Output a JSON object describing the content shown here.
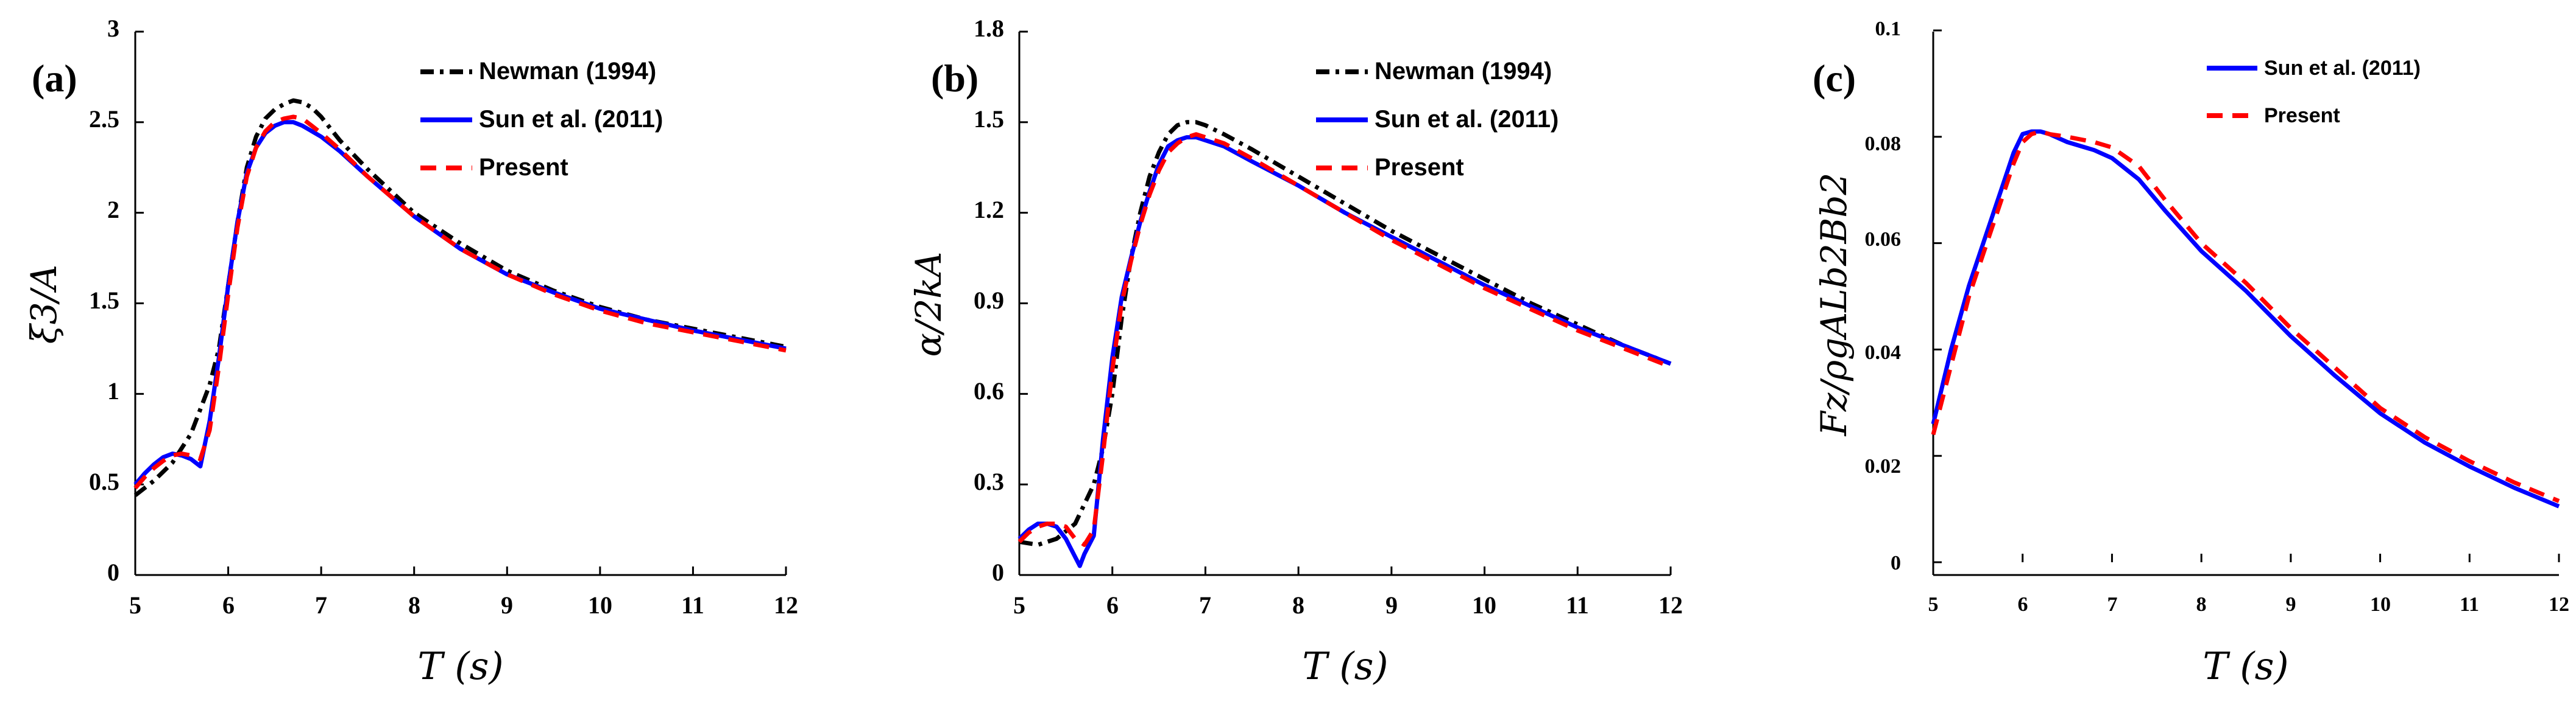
{
  "chart_data": [
    {
      "type": "line",
      "panel_label": "(a)",
      "xlabel": "T (s)",
      "ylabel": "ξ3/A",
      "xlim": [
        5,
        12
      ],
      "ylim": [
        0,
        3
      ],
      "xticks": [
        5,
        6,
        7,
        8,
        9,
        10,
        11,
        12
      ],
      "yticks": [
        0,
        0.5,
        1,
        1.5,
        2,
        2.5,
        3
      ],
      "ytick_labels": [
        "0",
        "0.5",
        "1",
        "1.5",
        "2",
        "2.5",
        "3"
      ],
      "legend": [
        "Newman (1994)",
        "Sun et al. (2011)",
        "Present"
      ],
      "series": [
        {
          "name": "Newman (1994)",
          "color": "#000000",
          "style": "dashdot",
          "x": [
            5.0,
            5.2,
            5.4,
            5.6,
            5.8,
            5.9,
            6.0,
            6.1,
            6.2,
            6.3,
            6.4,
            6.5,
            6.6,
            6.7,
            6.8,
            6.9,
            7.0,
            7.2,
            7.5,
            8.0,
            8.5,
            9.0,
            9.5,
            10.0,
            10.5,
            11.0,
            11.5,
            12.0
          ],
          "y": [
            0.44,
            0.52,
            0.62,
            0.78,
            1.05,
            1.25,
            1.6,
            1.95,
            2.25,
            2.42,
            2.52,
            2.57,
            2.6,
            2.62,
            2.61,
            2.58,
            2.53,
            2.4,
            2.24,
            2.0,
            1.83,
            1.68,
            1.57,
            1.48,
            1.41,
            1.36,
            1.31,
            1.26
          ]
        },
        {
          "name": "Sun et al. (2011)",
          "color": "#0000ff",
          "style": "solid",
          "x": [
            5.0,
            5.1,
            5.2,
            5.3,
            5.4,
            5.5,
            5.6,
            5.7,
            5.8,
            5.9,
            6.0,
            6.1,
            6.2,
            6.3,
            6.4,
            6.5,
            6.6,
            6.7,
            6.8,
            6.9,
            7.0,
            7.2,
            7.5,
            8.0,
            8.5,
            9.0,
            9.5,
            10.0,
            10.5,
            11.0,
            11.5,
            12.0
          ],
          "y": [
            0.5,
            0.56,
            0.61,
            0.65,
            0.67,
            0.66,
            0.64,
            0.6,
            0.85,
            1.2,
            1.6,
            1.95,
            2.22,
            2.36,
            2.44,
            2.48,
            2.5,
            2.5,
            2.48,
            2.45,
            2.42,
            2.34,
            2.2,
            1.98,
            1.8,
            1.66,
            1.56,
            1.47,
            1.41,
            1.35,
            1.3,
            1.25
          ]
        },
        {
          "name": "Present",
          "color": "#ff0000",
          "style": "dashed",
          "x": [
            5.0,
            5.1,
            5.2,
            5.3,
            5.4,
            5.5,
            5.6,
            5.7,
            5.8,
            5.9,
            6.0,
            6.1,
            6.2,
            6.3,
            6.4,
            6.5,
            6.6,
            6.7,
            6.8,
            6.9,
            7.0,
            7.2,
            7.5,
            8.0,
            8.5,
            9.0,
            9.5,
            10.0,
            10.5,
            11.0,
            11.5,
            12.0
          ],
          "y": [
            0.48,
            0.54,
            0.59,
            0.63,
            0.66,
            0.67,
            0.66,
            0.64,
            0.8,
            1.15,
            1.55,
            1.92,
            2.2,
            2.36,
            2.45,
            2.5,
            2.52,
            2.53,
            2.52,
            2.48,
            2.44,
            2.35,
            2.2,
            1.98,
            1.8,
            1.66,
            1.55,
            1.46,
            1.39,
            1.34,
            1.29,
            1.24
          ]
        }
      ]
    },
    {
      "type": "line",
      "panel_label": "(b)",
      "xlabel": "T (s)",
      "ylabel": "α/2kA",
      "xlim": [
        5,
        12
      ],
      "ylim": [
        0,
        1.8
      ],
      "xticks": [
        5,
        6,
        7,
        8,
        9,
        10,
        11,
        12
      ],
      "yticks": [
        0,
        0.3,
        0.6,
        0.9,
        1.2,
        1.5,
        1.8
      ],
      "ytick_labels": [
        "0",
        "0.3",
        "0.6",
        "0.9",
        "1.2",
        "1.5",
        "1.8"
      ],
      "legend": [
        "Newman (1994)",
        "Sun et al. (2011)",
        "Present"
      ],
      "series": [
        {
          "name": "Newman (1994)",
          "color": "#000000",
          "style": "dashdot",
          "x": [
            5.0,
            5.2,
            5.4,
            5.6,
            5.8,
            5.9,
            6.0,
            6.1,
            6.2,
            6.3,
            6.4,
            6.5,
            6.6,
            6.7,
            6.8,
            6.9,
            7.0,
            7.2,
            7.5,
            8.0,
            8.5,
            9.0,
            9.5,
            10.0,
            10.5,
            11.0,
            11.5,
            12.0
          ],
          "y": [
            0.11,
            0.1,
            0.12,
            0.17,
            0.3,
            0.42,
            0.6,
            0.85,
            1.05,
            1.2,
            1.32,
            1.4,
            1.46,
            1.49,
            1.5,
            1.5,
            1.49,
            1.46,
            1.41,
            1.32,
            1.23,
            1.14,
            1.06,
            0.98,
            0.9,
            0.83,
            0.76,
            0.7
          ]
        },
        {
          "name": "Sun et al. (2011)",
          "color": "#0000ff",
          "style": "solid",
          "x": [
            5.0,
            5.1,
            5.2,
            5.3,
            5.4,
            5.5,
            5.6,
            5.65,
            5.7,
            5.8,
            5.9,
            6.0,
            6.1,
            6.2,
            6.3,
            6.4,
            6.5,
            6.6,
            6.7,
            6.8,
            6.9,
            7.0,
            7.2,
            7.5,
            8.0,
            8.5,
            9.0,
            9.5,
            10.0,
            10.5,
            11.0,
            11.5,
            12.0
          ],
          "y": [
            0.12,
            0.15,
            0.17,
            0.17,
            0.16,
            0.12,
            0.06,
            0.03,
            0.07,
            0.13,
            0.45,
            0.72,
            0.92,
            1.05,
            1.17,
            1.27,
            1.36,
            1.42,
            1.44,
            1.45,
            1.45,
            1.44,
            1.42,
            1.37,
            1.29,
            1.2,
            1.12,
            1.04,
            0.96,
            0.89,
            0.82,
            0.76,
            0.7
          ]
        },
        {
          "name": "Present",
          "color": "#ff0000",
          "style": "dashed",
          "x": [
            5.0,
            5.1,
            5.2,
            5.3,
            5.4,
            5.5,
            5.6,
            5.7,
            5.8,
            5.9,
            6.0,
            6.1,
            6.2,
            6.3,
            6.4,
            6.5,
            6.6,
            6.7,
            6.8,
            6.9,
            7.0,
            7.2,
            7.5,
            8.0,
            8.5,
            9.0,
            9.5,
            10.0,
            10.5,
            11.0,
            11.5,
            12.0
          ],
          "y": [
            0.11,
            0.14,
            0.16,
            0.17,
            0.17,
            0.16,
            0.12,
            0.1,
            0.15,
            0.4,
            0.68,
            0.9,
            1.04,
            1.16,
            1.26,
            1.34,
            1.4,
            1.43,
            1.45,
            1.46,
            1.45,
            1.43,
            1.38,
            1.29,
            1.2,
            1.11,
            1.03,
            0.95,
            0.88,
            0.81,
            0.75,
            0.69
          ]
        }
      ]
    },
    {
      "type": "line",
      "panel_label": "(c)",
      "xlabel": "T (s)",
      "ylabel": "Fz/ρgALb2Bb2",
      "xlim": [
        5,
        12
      ],
      "ylim": [
        0,
        0.1
      ],
      "xticks": [
        5,
        6,
        7,
        8,
        9,
        10,
        11,
        12
      ],
      "yticks": [
        0,
        0.02,
        0.04,
        0.06,
        0.08,
        0.1
      ],
      "ytick_labels": [
        "0",
        "0.02",
        "0.04",
        "0.06",
        "0.08",
        "0.1"
      ],
      "legend": [
        "Sun et al. (2011)",
        "Present"
      ],
      "series": [
        {
          "name": "Sun et al. (2011)",
          "color": "#0000ff",
          "style": "solid",
          "x": [
            5.0,
            5.2,
            5.4,
            5.6,
            5.8,
            5.9,
            6.0,
            6.1,
            6.2,
            6.3,
            6.5,
            6.8,
            7.0,
            7.3,
            7.6,
            8.0,
            8.5,
            9.0,
            9.5,
            10.0,
            10.5,
            11.0,
            11.5,
            12.0
          ],
          "y": [
            0.026,
            0.04,
            0.052,
            0.062,
            0.072,
            0.077,
            0.0805,
            0.081,
            0.081,
            0.0805,
            0.079,
            0.0775,
            0.076,
            0.072,
            0.066,
            0.0585,
            0.051,
            0.0425,
            0.035,
            0.028,
            0.0225,
            0.018,
            0.014,
            0.0105
          ]
        },
        {
          "name": "Present",
          "color": "#ff0000",
          "style": "dashed",
          "x": [
            5.0,
            5.2,
            5.4,
            5.6,
            5.8,
            5.9,
            6.0,
            6.1,
            6.2,
            6.3,
            6.5,
            6.8,
            7.0,
            7.3,
            7.6,
            8.0,
            8.5,
            9.0,
            9.5,
            10.0,
            10.5,
            11.0,
            11.5,
            12.0
          ],
          "y": [
            0.024,
            0.037,
            0.05,
            0.06,
            0.07,
            0.075,
            0.079,
            0.0805,
            0.081,
            0.0805,
            0.08,
            0.079,
            0.078,
            0.0745,
            0.068,
            0.06,
            0.0525,
            0.044,
            0.0365,
            0.029,
            0.0235,
            0.019,
            0.015,
            0.0115
          ]
        }
      ]
    }
  ]
}
